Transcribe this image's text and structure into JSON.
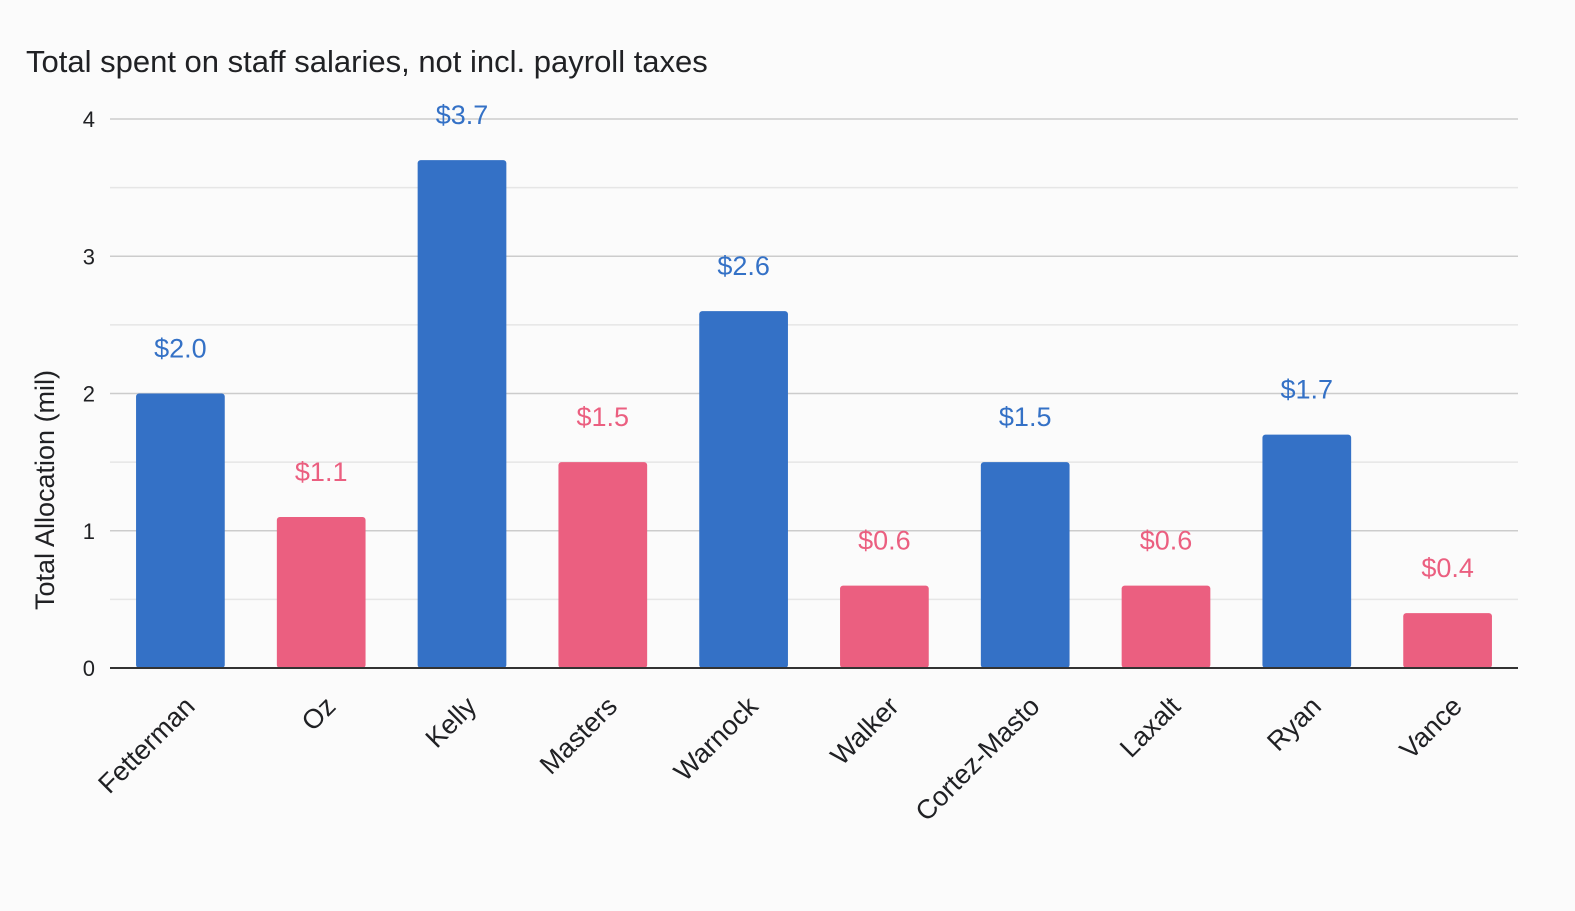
{
  "chart_data": {
    "type": "bar",
    "title": "Total spent on staff salaries, not incl. payroll taxes",
    "xlabel": "",
    "ylabel": "Total Allocation (mil)",
    "ylim": [
      0,
      4
    ],
    "yticks": [
      0,
      1,
      2,
      3,
      4
    ],
    "grid": true,
    "legend": "none",
    "colors": {
      "blue": "#3471c6",
      "red": "#eb5f80",
      "axis": "#333333",
      "grid_major": "#cccccc",
      "grid_minor": "#e6e6e6"
    },
    "categories": [
      "Fetterman",
      "Oz",
      "Kelly",
      "Masters",
      "Warnock",
      "Walker",
      "Cortez-Masto",
      "Laxalt",
      "Ryan",
      "Vance"
    ],
    "values": [
      2.0,
      1.1,
      3.7,
      1.5,
      2.6,
      0.6,
      1.5,
      0.6,
      1.7,
      0.4
    ],
    "bar_colors": [
      "blue",
      "red",
      "blue",
      "red",
      "blue",
      "red",
      "blue",
      "red",
      "blue",
      "red"
    ],
    "data_labels": [
      "$2.0",
      "$1.1",
      "$3.7",
      "$1.5",
      "$2.6",
      "$0.6",
      "$1.5",
      "$0.6",
      "$1.7",
      "$0.4"
    ]
  }
}
